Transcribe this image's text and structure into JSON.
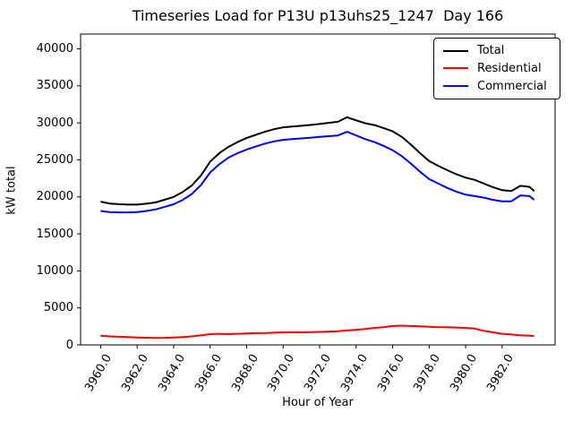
{
  "title": "Timeseries Load for P13U p13uhs25_1247  Day 166",
  "chart_data": {
    "type": "line",
    "title": "Timeseries Load for P13U p13uhs25_1247  Day 166",
    "xlabel": "Hour of Year",
    "ylabel": "kW total",
    "xlim": [
      3958.9,
      3984.9
    ],
    "ylim": [
      0,
      42000
    ],
    "grid": false,
    "x_ticks": [
      3960,
      3962,
      3964,
      3966,
      3968,
      3970,
      3972,
      3974,
      3976,
      3978,
      3980,
      3982
    ],
    "x_tick_labels": [
      "3960.0",
      "3962.0",
      "3964.0",
      "3966.0",
      "3968.0",
      "3970.0",
      "3972.0",
      "3974.0",
      "3976.0",
      "3978.0",
      "3980.0",
      "3982.0"
    ],
    "x_tick_rotation": 60,
    "y_ticks": [
      0,
      5000,
      10000,
      15000,
      20000,
      25000,
      30000,
      35000,
      40000
    ],
    "y_tick_labels": [
      "0",
      "5000",
      "10000",
      "15000",
      "20000",
      "25000",
      "30000",
      "35000",
      "40000"
    ],
    "legend": {
      "position": "upper right",
      "entries": [
        {
          "label": "Total",
          "color": "#000000"
        },
        {
          "label": "Residential",
          "color": "#ff0000"
        },
        {
          "label": "Commercial",
          "color": "#0000ff"
        }
      ]
    },
    "x": [
      3960,
      3960.5,
      3961,
      3961.5,
      3962,
      3962.5,
      3963,
      3963.5,
      3964,
      3964.5,
      3965,
      3965.5,
      3966,
      3966.5,
      3967,
      3967.5,
      3968,
      3968.5,
      3969,
      3969.5,
      3970,
      3970.5,
      3971,
      3971.5,
      3972,
      3972.5,
      3973,
      3973.5,
      3974,
      3974.5,
      3975,
      3975.5,
      3976,
      3976.5,
      3977,
      3977.5,
      3978,
      3978.5,
      3979,
      3979.5,
      3980,
      3980.5,
      3981,
      3981.5,
      3982,
      3982.5,
      3983,
      3983.5,
      3983.75
    ],
    "series": [
      {
        "name": "Total",
        "color": "#000000",
        "values": [
          19350,
          19100,
          19000,
          18950,
          18950,
          19070,
          19250,
          19610,
          20000,
          20670,
          21550,
          22900,
          24750,
          25900,
          26750,
          27400,
          27950,
          28380,
          28800,
          29150,
          29400,
          29500,
          29600,
          29720,
          29850,
          30000,
          30150,
          30750,
          30350,
          29950,
          29700,
          29300,
          28850,
          28100,
          27050,
          25900,
          24850,
          24200,
          23600,
          23050,
          22600,
          22300,
          21800,
          21300,
          20900,
          20800,
          21500,
          21350,
          20800
        ]
      },
      {
        "name": "Residential",
        "color": "#ff0000",
        "values": [
          1250,
          1150,
          1100,
          1050,
          1000,
          970,
          950,
          960,
          1000,
          1070,
          1150,
          1300,
          1450,
          1500,
          1450,
          1500,
          1550,
          1580,
          1600,
          1650,
          1700,
          1700,
          1700,
          1720,
          1750,
          1800,
          1850,
          1950,
          2050,
          2150,
          2300,
          2400,
          2550,
          2600,
          2550,
          2500,
          2450,
          2400,
          2400,
          2350,
          2300,
          2200,
          1900,
          1700,
          1500,
          1400,
          1300,
          1250,
          1200
        ]
      },
      {
        "name": "Commercial",
        "color": "#0000ff",
        "values": [
          18100,
          17950,
          17900,
          17900,
          17950,
          18100,
          18300,
          18650,
          19000,
          19600,
          20400,
          21600,
          23300,
          24400,
          25300,
          25900,
          26400,
          26800,
          27200,
          27500,
          27700,
          27800,
          27900,
          28000,
          28100,
          28200,
          28300,
          28800,
          28300,
          27800,
          27400,
          26900,
          26300,
          25500,
          24500,
          23400,
          22400,
          21800,
          21200,
          20700,
          20300,
          20100,
          19900,
          19600,
          19400,
          19400,
          20200,
          20100,
          19600
        ]
      }
    ]
  }
}
